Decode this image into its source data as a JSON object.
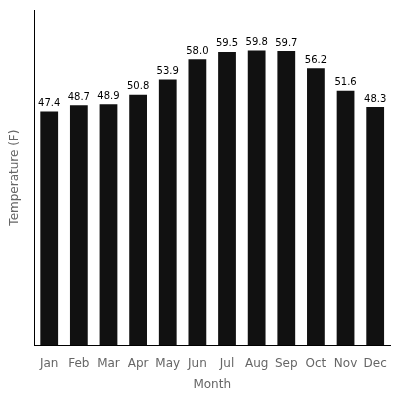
{
  "chart_data": {
    "type": "bar",
    "categories": [
      "Jan",
      "Feb",
      "Mar",
      "Apr",
      "May",
      "Jun",
      "Jul",
      "Aug",
      "Sep",
      "Oct",
      "Nov",
      "Dec"
    ],
    "values": [
      47.4,
      48.7,
      48.9,
      50.8,
      53.9,
      58.0,
      59.5,
      59.8,
      59.7,
      56.2,
      51.6,
      48.3
    ],
    "value_labels": [
      "47.4",
      "48.7",
      "48.9",
      "50.8",
      "53.9",
      "58.0",
      "59.5",
      "59.8",
      "59.7",
      "56.2",
      "51.6",
      "48.3"
    ],
    "color": "#111111",
    "xlabel": "Month",
    "ylabel": "Temperature (F)",
    "ylim": [
      0,
      68
    ],
    "grid": false,
    "data_labels": true,
    "tick_labels": "x"
  }
}
